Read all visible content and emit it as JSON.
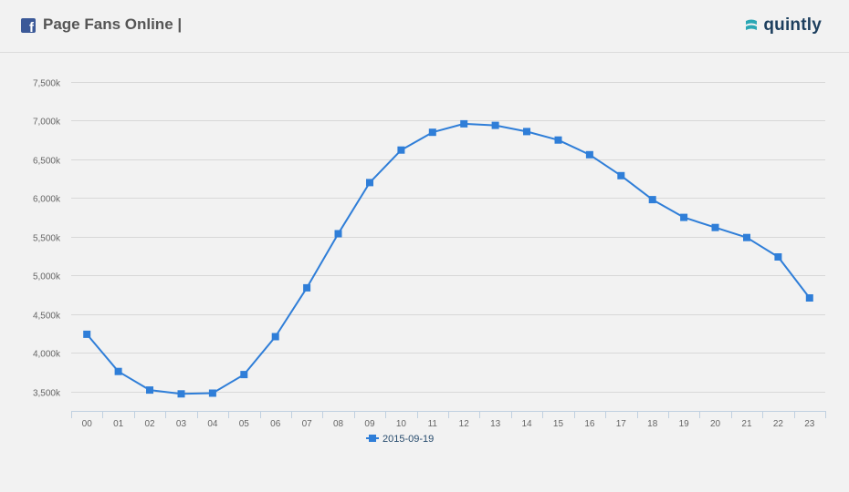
{
  "header": {
    "title": "Page Fans Online |",
    "logo_text": "quintly",
    "icon": "facebook-icon",
    "logo_icon": "quintly-logo-icon"
  },
  "colors": {
    "series": "#2f7ed8",
    "grid": "#d8d8d8",
    "axis_text": "#666666",
    "background": "#f2f2f2"
  },
  "chart_data": {
    "type": "line",
    "title": "",
    "xlabel": "",
    "ylabel": "",
    "categories": [
      "00",
      "01",
      "02",
      "03",
      "04",
      "05",
      "06",
      "07",
      "08",
      "09",
      "10",
      "11",
      "12",
      "13",
      "14",
      "15",
      "16",
      "17",
      "18",
      "19",
      "20",
      "21",
      "22",
      "23"
    ],
    "ylim": [
      3250,
      7500
    ],
    "yticks": [
      3500,
      4000,
      4500,
      5000,
      5500,
      6000,
      6500,
      7000,
      7500
    ],
    "ytick_labels": [
      "3,500k",
      "4,000k",
      "4,500k",
      "5,000k",
      "5,500k",
      "6,000k",
      "6,500k",
      "7,000k",
      "7,500k"
    ],
    "grid": true,
    "legend_position": "bottom-center",
    "series": [
      {
        "name": "2015-09-19",
        "color": "#2f7ed8",
        "marker": "square",
        "values": [
          4240,
          3760,
          3520,
          3470,
          3480,
          3720,
          4210,
          4840,
          5540,
          6200,
          6620,
          6850,
          6960,
          6940,
          6860,
          6750,
          6560,
          6290,
          5980,
          5750,
          5620,
          5490,
          5240,
          4710
        ]
      }
    ]
  }
}
